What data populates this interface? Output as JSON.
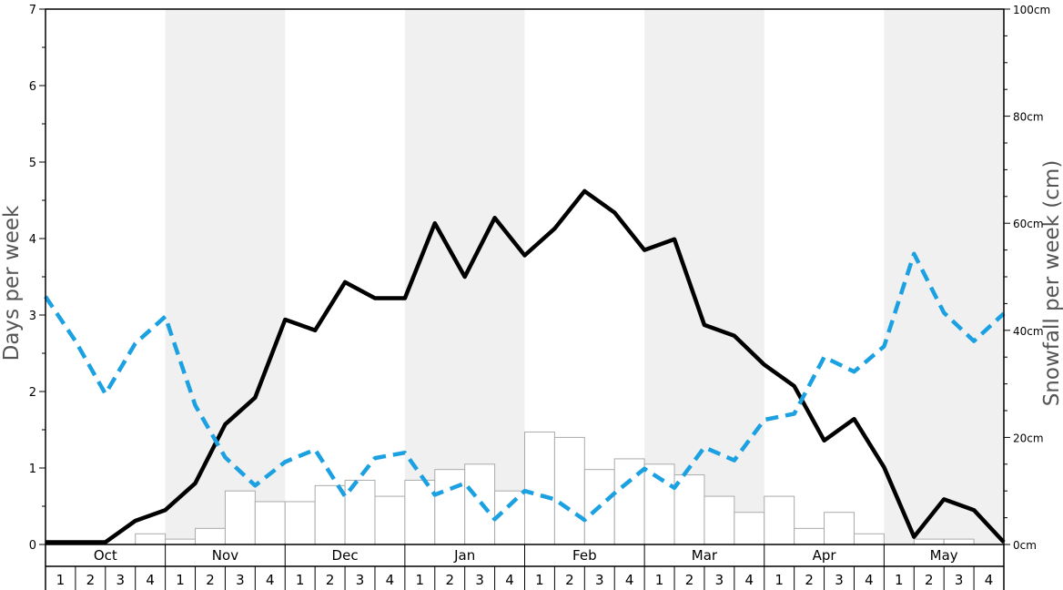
{
  "chart_data": {
    "type": "bar+line",
    "title": "",
    "ylabel": "Days per week",
    "y2label": "Snowfall per week (cm)",
    "ylim": [
      0,
      7
    ],
    "y_ticks": [
      "0",
      "1",
      "2",
      "3",
      "4",
      "5",
      "6",
      "7"
    ],
    "y2lim": [
      0,
      100
    ],
    "y2_ticks": [
      "0cm",
      "20cm",
      "40cm",
      "60cm",
      "80cm",
      "100cm"
    ],
    "months": [
      "Oct",
      "Nov",
      "Dec",
      "Jan",
      "Feb",
      "Mar",
      "Apr",
      "May"
    ],
    "weeks": [
      "1",
      "2",
      "3",
      "4"
    ],
    "shaded_months": [
      "Nov",
      "Jan",
      "Mar",
      "May"
    ],
    "colors": {
      "bars_fill": "#ffffff",
      "bars_stroke": "#aaaaaa",
      "shade": "#f0f0f0",
      "solid_line": "#000000",
      "dashed_line": "#1ba1e2"
    },
    "series": [
      {
        "kind": "bar",
        "axis": "right",
        "values": [
          0,
          0,
          0,
          2,
          1,
          3,
          10,
          8,
          8,
          11,
          12,
          9,
          12,
          14,
          15,
          10,
          21,
          20,
          14,
          16,
          15,
          13,
          9,
          6,
          9,
          3,
          6,
          2,
          0,
          1,
          1,
          0
        ]
      },
      {
        "kind": "line",
        "style": "solid",
        "axis": "left",
        "values": [
          0.03,
          0.03,
          0.03,
          0.31,
          0.45,
          0.8,
          1.57,
          1.92,
          2.94,
          2.8,
          3.43,
          3.22,
          3.22,
          4.2,
          3.5,
          4.27,
          3.78,
          4.13,
          4.62,
          4.34,
          3.85,
          3.99,
          2.87,
          2.73,
          2.35,
          2.07,
          1.36,
          1.64,
          1.01,
          0.1,
          0.59,
          0.45,
          0.03
        ]
      },
      {
        "kind": "line",
        "style": "dashed",
        "axis": "left",
        "values": [
          3.24,
          2.66,
          1.97,
          2.63,
          2.98,
          1.82,
          1.14,
          0.77,
          1.08,
          1.24,
          0.63,
          1.13,
          1.2,
          0.65,
          0.8,
          0.33,
          0.7,
          0.59,
          0.32,
          0.67,
          0.99,
          0.74,
          1.27,
          1.1,
          1.63,
          1.71,
          2.45,
          2.26,
          2.59,
          3.8,
          3.03,
          2.66,
          3.02
        ]
      }
    ]
  }
}
